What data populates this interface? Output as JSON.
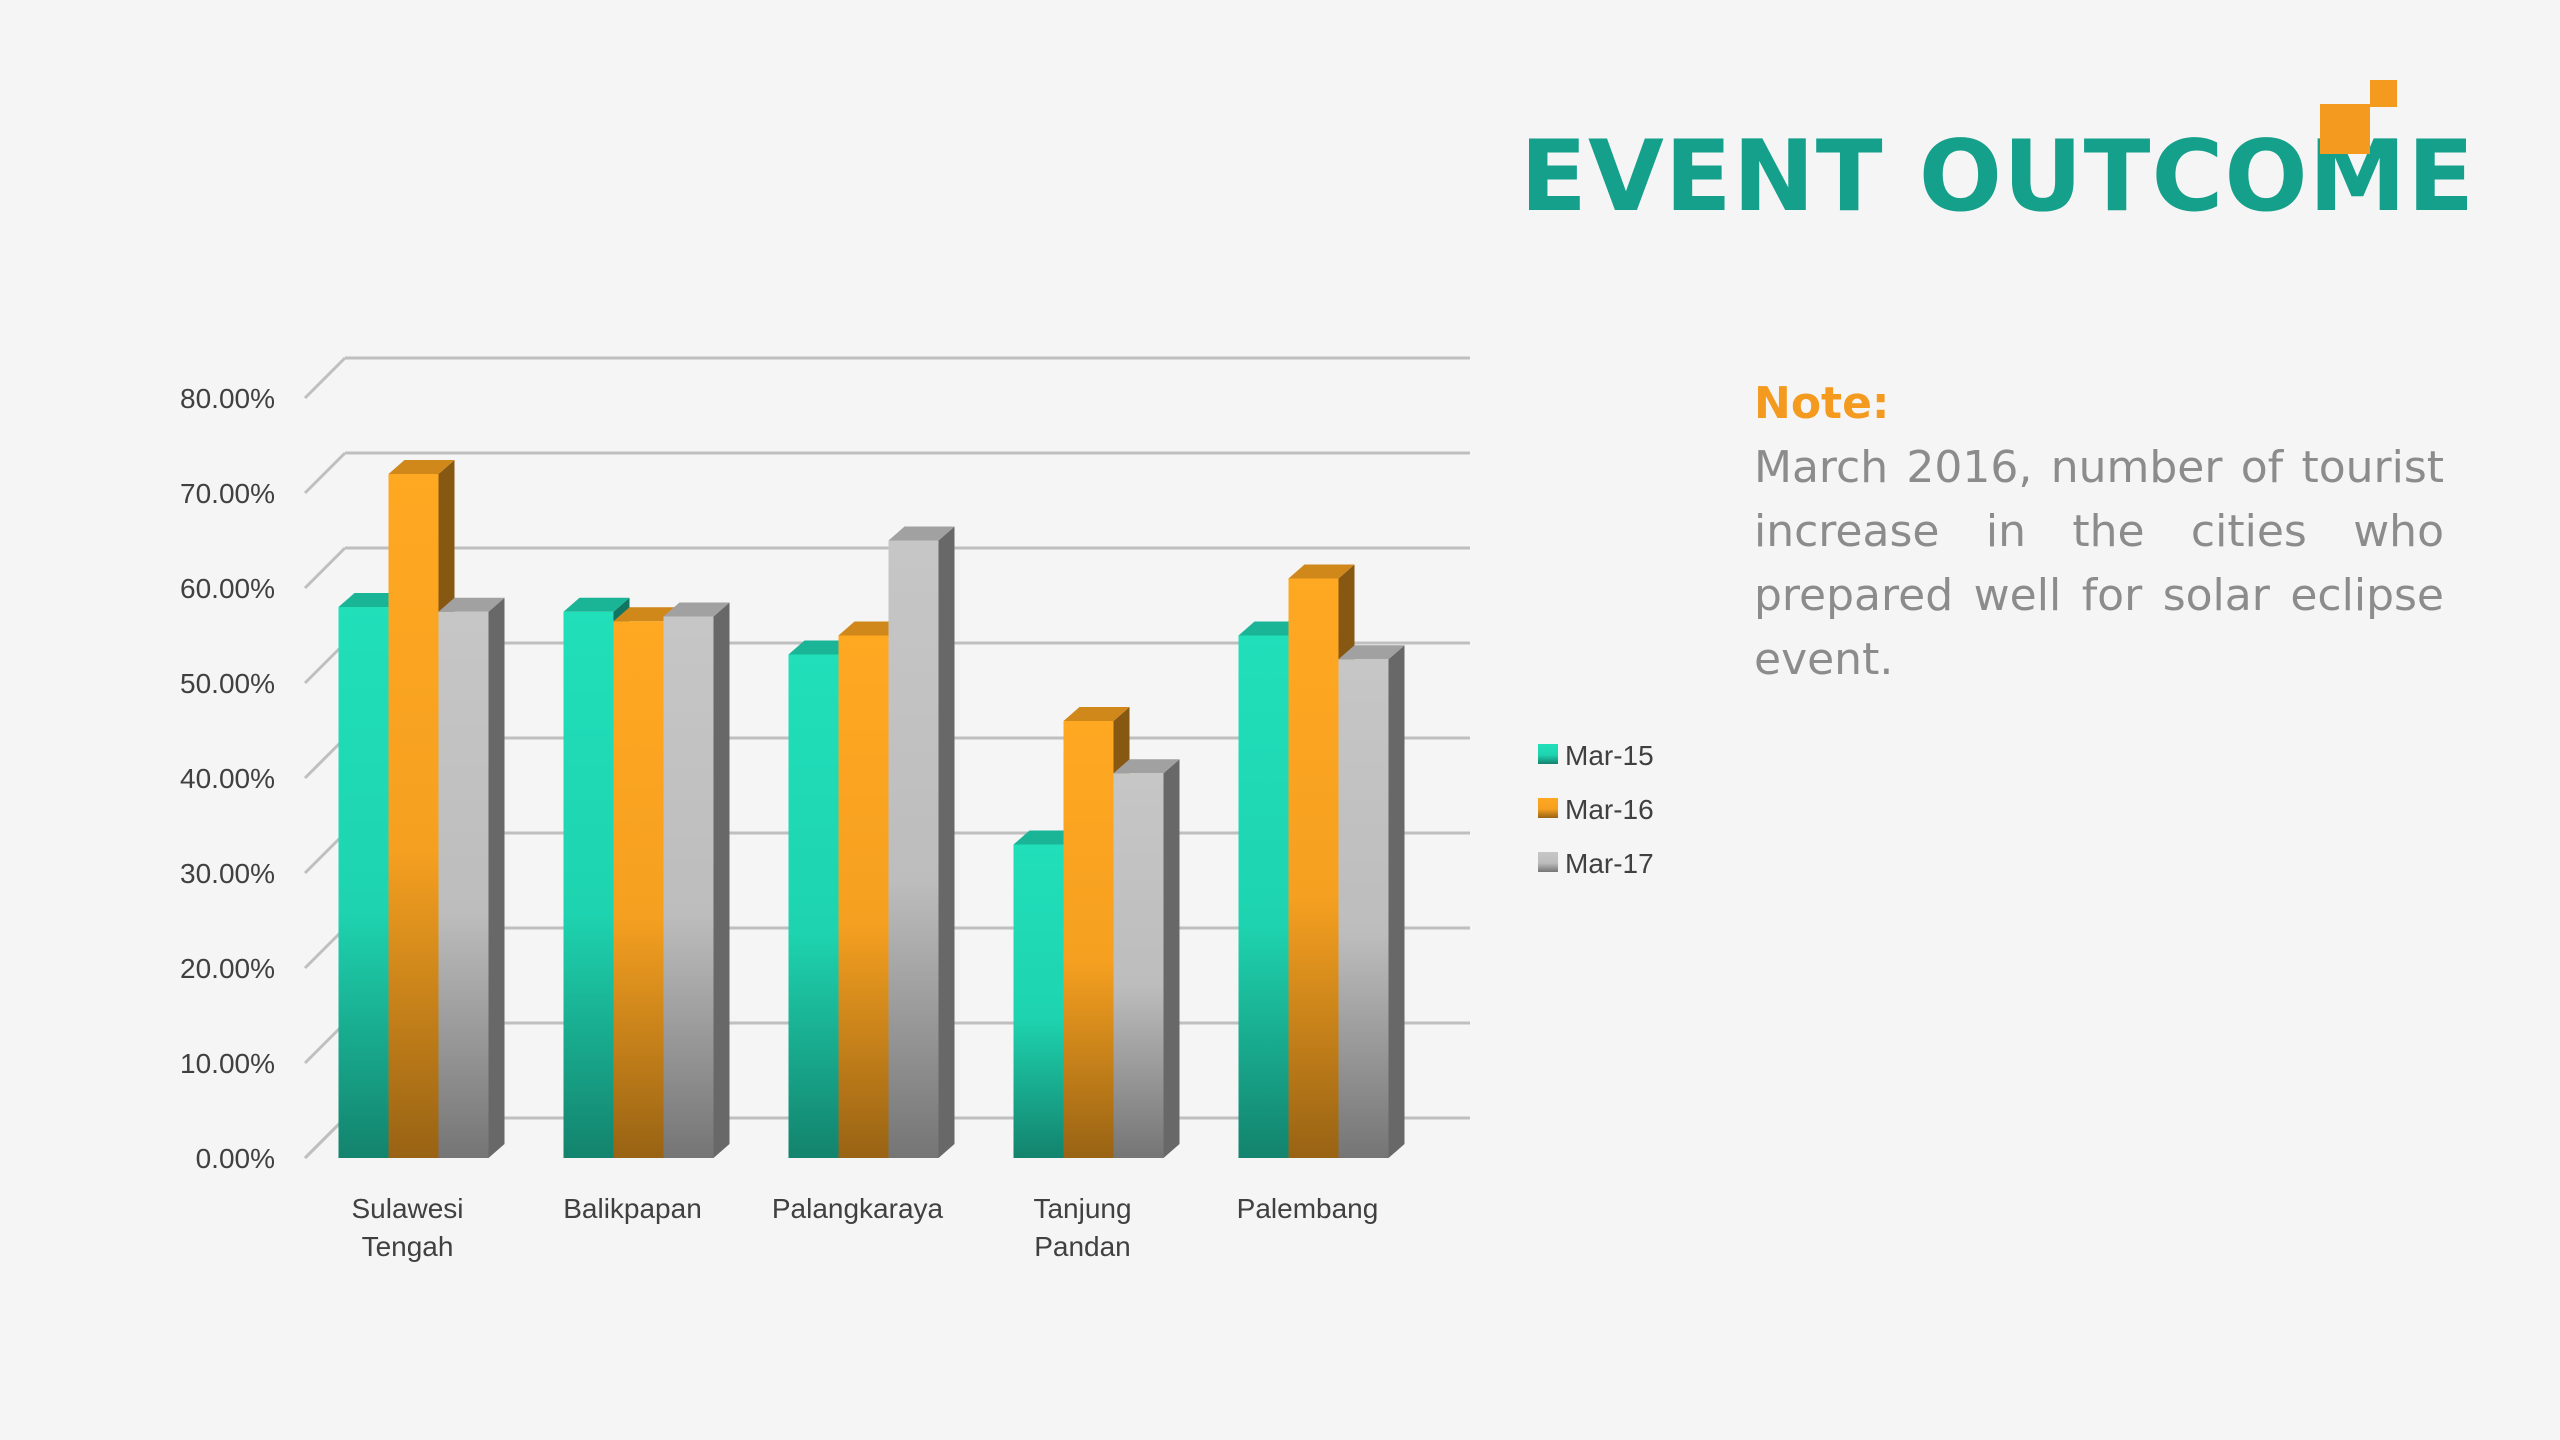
{
  "slide": {
    "title": "EVENT OUTCOME",
    "note_label": "Note:",
    "note_text": "March 2016, number of tourist increase in the cities who prepared well for solar eclipse event."
  },
  "colors": {
    "title": "#14a08a",
    "accent": "#f39a1f",
    "note_text": "#8c8c8c",
    "background": "#f5f5f5"
  },
  "chart_data": {
    "type": "bar",
    "style": "3d-clustered-column",
    "categories": [
      [
        "Sulawesi",
        "Tengah"
      ],
      [
        "Balikpapan"
      ],
      [
        "Palangkaraya"
      ],
      [
        "Tanjung",
        "Pandan"
      ],
      [
        "Palembang"
      ]
    ],
    "series": [
      {
        "name": "Mar-15",
        "color": "#1ed4b0",
        "values": [
          0.58,
          0.575,
          0.53,
          0.33,
          0.55
        ]
      },
      {
        "name": "Mar-16",
        "color": "#f5a020",
        "values": [
          0.72,
          0.565,
          0.55,
          0.46,
          0.61
        ]
      },
      {
        "name": "Mar-17",
        "color": "#bdbdbd",
        "values": [
          0.575,
          0.57,
          0.65,
          0.405,
          0.525
        ]
      }
    ],
    "yticks": [
      "0.00%",
      "10.00%",
      "20.00%",
      "30.00%",
      "40.00%",
      "50.00%",
      "60.00%",
      "70.00%",
      "80.00%"
    ],
    "ylim": [
      0,
      0.8
    ],
    "grid": true,
    "legend": "right"
  }
}
